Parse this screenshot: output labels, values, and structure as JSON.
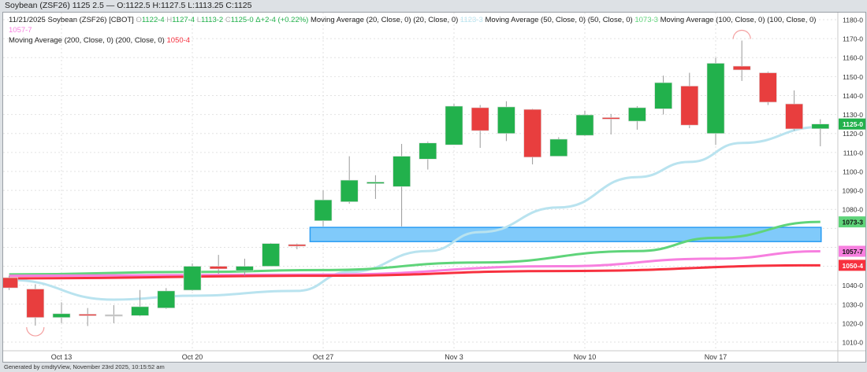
{
  "title": "Soybean (ZSF26) 1125 2.5 — O:1122.5 H:1127.5 L:1113.25 C:1125",
  "legend": {
    "date": "11/21/2025",
    "symbol": "Soybean (ZSF26) [CBOT]",
    "o_label": "O",
    "o": "1122-4",
    "h_label": "H",
    "h": "1127-4",
    "l_label": "L",
    "l": "1113-2",
    "c_label": "C",
    "c": "1125-0",
    "change": "Δ+2-4 (+0.22%)",
    "ma": [
      {
        "label": "Moving Average (20, Close, 0)  (20, Close, 0)",
        "value": "1123-3",
        "color": "#b9e3ef"
      },
      {
        "label": "Moving Average (50, Close, 0)  (50, Close, 0)",
        "value": "1073-3",
        "color": "#5fd47a"
      },
      {
        "label": "Moving Average (100, Close, 0)  (100, Close, 0)",
        "value": "1057-7",
        "color": "#f77fdf"
      },
      {
        "label": "Moving Average (200, Close, 0)  (200, Close, 0)",
        "value": "1050-4",
        "color": "#f7313f"
      }
    ]
  },
  "footer": "Generated by cmdtyView, November 23rd 2025, 10:15:52 am",
  "chart_data": {
    "type": "candlestick",
    "ylim": [
      1005,
      1182
    ],
    "yticks": [
      1010,
      1020,
      1030,
      1040,
      1050,
      1060,
      1070,
      1080,
      1090,
      1100,
      1110,
      1120,
      1130,
      1140,
      1150,
      1160,
      1170,
      1180
    ],
    "ytick_format": "-0",
    "grid": true,
    "xticks": [
      {
        "date": "Oct 13",
        "index": 2
      },
      {
        "date": "Oct 20",
        "index": 7
      },
      {
        "date": "Oct 27",
        "index": 12
      },
      {
        "date": "Nov 3",
        "index": 17
      },
      {
        "date": "Nov 10",
        "index": 22
      },
      {
        "date": "Nov 17",
        "index": 27
      }
    ],
    "colors": {
      "up": "#22b14c",
      "down": "#e83e3e",
      "neutral": "#bbbbbb",
      "wick": "#999999"
    },
    "candles": [
      {
        "d": "Oct 9",
        "o": 1044,
        "h": 1045,
        "l": 1037.5,
        "c": 1038.6
      },
      {
        "d": "Oct 10",
        "o": 1038,
        "h": 1040.5,
        "l": 1018.7,
        "c": 1023
      },
      {
        "d": "Oct 13",
        "o": 1023,
        "h": 1031,
        "l": 1020,
        "c": 1025
      },
      {
        "d": "Oct 14",
        "o": 1024.75,
        "h": 1028,
        "l": 1018.5,
        "c": 1024.5
      },
      {
        "d": "Oct 15",
        "o": 1024.5,
        "h": 1029.5,
        "l": 1020,
        "c": 1024.5
      },
      {
        "d": "Oct 16",
        "o": 1024,
        "h": 1037.5,
        "l": 1023.6,
        "c": 1028.7
      },
      {
        "d": "Oct 17",
        "o": 1028,
        "h": 1038.5,
        "l": 1027.5,
        "c": 1037
      },
      {
        "d": "Oct 20",
        "o": 1037.4,
        "h": 1051.5,
        "l": 1037,
        "c": 1050
      },
      {
        "d": "Oct 21",
        "o": 1050,
        "h": 1056,
        "l": 1046,
        "c": 1048.6
      },
      {
        "d": "Oct 22",
        "o": 1047.7,
        "h": 1054,
        "l": 1045,
        "c": 1050
      },
      {
        "d": "Oct 23",
        "o": 1050,
        "h": 1062.3,
        "l": 1050,
        "c": 1062
      },
      {
        "d": "Oct 24",
        "o": 1061.5,
        "h": 1062,
        "l": 1059,
        "c": 1060.6
      },
      {
        "d": "Oct 27",
        "o": 1074,
        "h": 1090,
        "l": 1071,
        "c": 1085
      },
      {
        "d": "Oct 28",
        "o": 1084,
        "h": 1108,
        "l": 1083,
        "c": 1095.4
      },
      {
        "d": "Oct 29",
        "o": 1093.8,
        "h": 1098,
        "l": 1085.5,
        "c": 1094.4
      },
      {
        "d": "Oct 30",
        "o": 1092,
        "h": 1114.5,
        "l": 1071,
        "c": 1108
      },
      {
        "d": "Oct 31",
        "o": 1106.5,
        "h": 1115.7,
        "l": 1101,
        "c": 1115
      },
      {
        "d": "Nov 3",
        "o": 1114,
        "h": 1135.6,
        "l": 1114,
        "c": 1134.4
      },
      {
        "d": "Nov 4",
        "o": 1133.6,
        "h": 1135,
        "l": 1112.4,
        "c": 1121.5
      },
      {
        "d": "Nov 5",
        "o": 1120,
        "h": 1137,
        "l": 1116,
        "c": 1134
      },
      {
        "d": "Nov 6",
        "o": 1132.7,
        "h": 1133,
        "l": 1103.7,
        "c": 1107.5
      },
      {
        "d": "Nov 7",
        "o": 1108,
        "h": 1118,
        "l": 1108,
        "c": 1117
      },
      {
        "d": "Nov 10",
        "o": 1119,
        "h": 1132,
        "l": 1118.6,
        "c": 1129.8
      },
      {
        "d": "Nov 11",
        "o": 1128.4,
        "h": 1130.3,
        "l": 1119.5,
        "c": 1127.6
      },
      {
        "d": "Nov 12",
        "o": 1126.5,
        "h": 1134.4,
        "l": 1122,
        "c": 1133.6
      },
      {
        "d": "Nov 13",
        "o": 1133,
        "h": 1150.5,
        "l": 1130,
        "c": 1146.8
      },
      {
        "d": "Nov 14",
        "o": 1145,
        "h": 1152,
        "l": 1122.8,
        "c": 1124.4
      },
      {
        "d": "Nov 17",
        "o": 1120,
        "h": 1160,
        "l": 1114,
        "c": 1157
      },
      {
        "d": "Nov 18",
        "o": 1155.5,
        "h": 1169,
        "l": 1147.7,
        "c": 1153.5
      },
      {
        "d": "Nov 19",
        "o": 1152,
        "h": 1152.6,
        "l": 1135,
        "c": 1136.5
      },
      {
        "d": "Nov 20",
        "o": 1135.6,
        "h": 1142.7,
        "l": 1121.5,
        "c": 1122.4
      },
      {
        "d": "Nov 21",
        "o": 1122.5,
        "h": 1127.5,
        "l": 1113.25,
        "c": 1125
      }
    ],
    "moving_averages": [
      {
        "name": "Moving Average (20, Close, 0)",
        "color": "#b9e3ef",
        "points": [
          [
            0,
            1042.8
          ],
          [
            4,
            1032.4
          ],
          [
            7,
            1034.5
          ],
          [
            11,
            1037
          ],
          [
            13,
            1047
          ],
          [
            16,
            1058
          ],
          [
            18,
            1068
          ],
          [
            21,
            1081
          ],
          [
            24,
            1097
          ],
          [
            26,
            1105
          ],
          [
            28,
            1115
          ],
          [
            31,
            1123.4
          ]
        ]
      },
      {
        "name": "Moving Average (50, Close, 0)",
        "color": "#5fd47a",
        "points": [
          [
            0,
            1045.7
          ],
          [
            7,
            1047
          ],
          [
            12,
            1048
          ],
          [
            18,
            1052
          ],
          [
            24,
            1058
          ],
          [
            27,
            1065
          ],
          [
            31,
            1073.4
          ]
        ]
      },
      {
        "name": "Moving Average (100, Close, 0)",
        "color": "#f77fdf",
        "points": [
          [
            0,
            1045
          ],
          [
            12,
            1045.6
          ],
          [
            21,
            1050
          ],
          [
            27,
            1054
          ],
          [
            31,
            1057.9
          ]
        ]
      },
      {
        "name": "Moving Average (200, Close, 0)",
        "color": "#f7313f",
        "points": [
          [
            0,
            1043.6
          ],
          [
            12,
            1045
          ],
          [
            21,
            1047.5
          ],
          [
            31,
            1050.5
          ]
        ]
      }
    ],
    "zone": {
      "from_index": 11.5,
      "to_index": 31,
      "low": 1063,
      "high": 1070.5,
      "color": "#80cafa"
    },
    "markers": [
      {
        "index": 1,
        "type": "low"
      },
      {
        "index": 28,
        "type": "high"
      }
    ],
    "badges": [
      {
        "label": "1125-0",
        "price": 1125,
        "color": "#22b14c",
        "text": "#ffffff"
      },
      {
        "label": "1073-3",
        "price": 1073.4,
        "color": "#5fd47a",
        "text": "#111111"
      },
      {
        "label": "1057-7",
        "price": 1057.9,
        "color": "#f77fdf",
        "text": "#111111"
      },
      {
        "label": "1050-4",
        "price": 1050.5,
        "color": "#f7313f",
        "text": "#ffffff"
      }
    ]
  }
}
